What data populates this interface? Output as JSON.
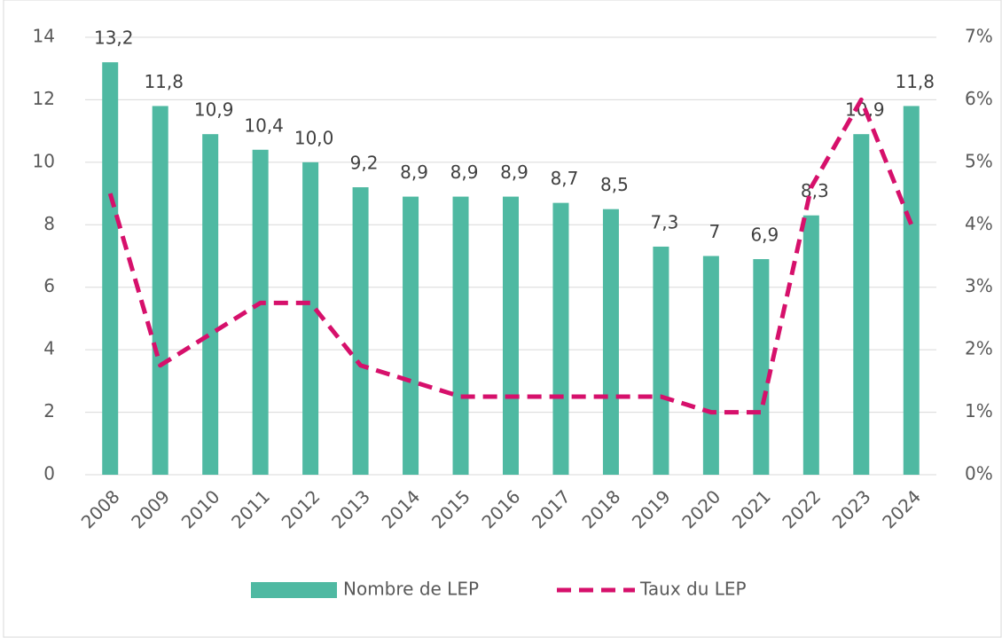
{
  "chart_data": {
    "type": "bar-line",
    "categories": [
      "2008",
      "2009",
      "2010",
      "2011",
      "2012",
      "2013",
      "2014",
      "2015",
      "2016",
      "2017",
      "2018",
      "2019",
      "2020",
      "2021",
      "2022",
      "2023",
      "2024"
    ],
    "series": [
      {
        "name": "Nombre de LEP",
        "color": "#4fb9a2",
        "type": "bar",
        "values": [
          13.2,
          11.8,
          10.9,
          10.4,
          10.0,
          9.2,
          8.9,
          8.9,
          8.9,
          8.7,
          8.5,
          7.3,
          7,
          6.9,
          8.3,
          10.9,
          11.8
        ],
        "value_labels": [
          "13,2",
          "11,8",
          "10,9",
          "10,4",
          "10,0",
          "9,2",
          "8,9",
          "8,9",
          "8,9",
          "8,7",
          "8,5",
          "7,3",
          "7",
          "6,9",
          "8,3",
          "10,9",
          "11,8"
        ]
      },
      {
        "name": "Taux du LEP",
        "color": "#d6106b",
        "type": "line",
        "axis": "y2",
        "values": [
          4.5,
          1.75,
          2.25,
          2.75,
          2.75,
          1.75,
          1.5,
          1.25,
          1.25,
          1.25,
          1.25,
          1.25,
          1.0,
          1.0,
          4.6,
          6.0,
          4.0
        ]
      }
    ],
    "ylim": [
      0,
      14
    ],
    "yticks": [
      0,
      2,
      4,
      6,
      8,
      10,
      12,
      14
    ],
    "y2lim": [
      0,
      7
    ],
    "y2ticks": [
      {
        "value": 0,
        "label": "0%"
      },
      {
        "value": 1,
        "label": "1%"
      },
      {
        "value": 2,
        "label": "2%"
      },
      {
        "value": 3,
        "label": "3%"
      },
      {
        "value": 4,
        "label": "4%"
      },
      {
        "value": 5,
        "label": "5%"
      },
      {
        "value": 6,
        "label": "6%"
      },
      {
        "value": 7,
        "label": "7%"
      }
    ],
    "grid": true
  }
}
